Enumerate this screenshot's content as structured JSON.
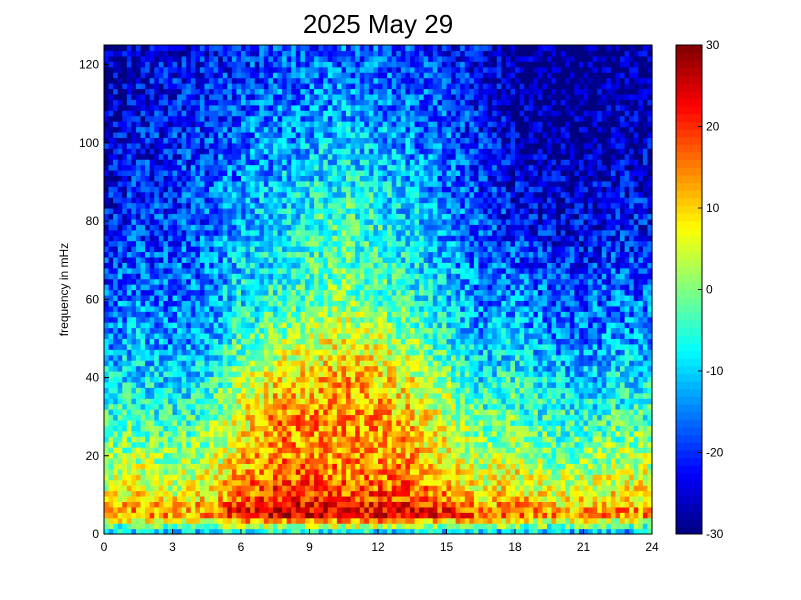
{
  "chart_data": {
    "type": "heatmap",
    "title": "2025 May 29",
    "xlabel": "",
    "ylabel": "frequency in mHz",
    "xlim": [
      0,
      24
    ],
    "ylim": [
      0,
      125
    ],
    "x_ticks": [
      0,
      3,
      6,
      9,
      12,
      15,
      18,
      21,
      24
    ],
    "y_ticks": [
      0,
      20,
      40,
      60,
      80,
      100,
      120
    ],
    "colorbar": {
      "range": [
        -30,
        30
      ],
      "ticks": [
        -30,
        -20,
        -10,
        0,
        10,
        20,
        30
      ],
      "colormap": "jet"
    },
    "grid": false,
    "description_of_values": {
      "x_units": "hours",
      "y_units": "mHz",
      "z_units": "dB"
    },
    "time_hours": [
      0,
      1.5,
      3,
      4.5,
      6,
      7.5,
      9,
      10.5,
      12,
      13.5,
      15,
      16.5,
      18,
      19.5,
      21,
      22.5,
      24
    ],
    "freq_mhz": [
      0,
      5,
      10,
      20,
      30,
      40,
      50,
      60,
      70,
      80,
      90,
      100,
      110,
      120,
      125
    ],
    "power_db": [
      [
        -14,
        -14,
        -15,
        -14,
        -12,
        -12,
        -12,
        -12,
        -12,
        -13,
        -13,
        -14,
        -14,
        -15,
        -15,
        -15,
        -15
      ],
      [
        12,
        16,
        14,
        16,
        24,
        26,
        26,
        24,
        24,
        24,
        22,
        16,
        18,
        14,
        14,
        15,
        15
      ],
      [
        6,
        8,
        6,
        8,
        16,
        20,
        20,
        18,
        18,
        18,
        14,
        8,
        10,
        6,
        6,
        8,
        8
      ],
      [
        0,
        2,
        0,
        2,
        10,
        14,
        14,
        13,
        13,
        12,
        8,
        2,
        4,
        0,
        0,
        2,
        2
      ],
      [
        -5,
        -4,
        -6,
        -3,
        6,
        14,
        14,
        14,
        13,
        10,
        4,
        -3,
        -2,
        -6,
        -6,
        -4,
        -4
      ],
      [
        -10,
        -9,
        -11,
        -8,
        2,
        8,
        10,
        12,
        10,
        6,
        0,
        -8,
        -6,
        -10,
        -11,
        -9,
        -9
      ],
      [
        -14,
        -12,
        -14,
        -12,
        -4,
        0,
        4,
        6,
        4,
        0,
        -6,
        -12,
        -10,
        -14,
        -15,
        -13,
        -13
      ],
      [
        -17,
        -15,
        -16,
        -14,
        -8,
        -6,
        -2,
        0,
        -2,
        -6,
        -10,
        -15,
        -14,
        -17,
        -18,
        -16,
        -16
      ],
      [
        -20,
        -18,
        -18,
        -16,
        -10,
        -8,
        -4,
        -2,
        -4,
        -8,
        -12,
        -17,
        -18,
        -20,
        -21,
        -19,
        -19
      ],
      [
        -22,
        -20,
        -19,
        -17,
        -12,
        -10,
        -6,
        -3,
        -6,
        -10,
        -14,
        -18,
        -22,
        -24,
        -24,
        -22,
        -22
      ],
      [
        -24,
        -21,
        -20,
        -18,
        -14,
        -12,
        -9,
        -7,
        -9,
        -12,
        -16,
        -20,
        -24,
        -26,
        -26,
        -24,
        -24
      ],
      [
        -26,
        -22,
        -21,
        -19,
        -16,
        -14,
        -12,
        -10,
        -12,
        -14,
        -17,
        -21,
        -26,
        -28,
        -28,
        -26,
        -26
      ],
      [
        -27,
        -23,
        -22,
        -20,
        -18,
        -16,
        -15,
        -13,
        -15,
        -16,
        -18,
        -22,
        -27,
        -29,
        -29,
        -27,
        -27
      ],
      [
        -28,
        -24,
        -23,
        -22,
        -20,
        -18,
        -17,
        -16,
        -17,
        -18,
        -20,
        -23,
        -28,
        -30,
        -30,
        -28,
        -28
      ],
      [
        -28,
        -25,
        -24,
        -23,
        -21,
        -19,
        -18,
        -17,
        -18,
        -19,
        -21,
        -24,
        -28,
        -30,
        -30,
        -28,
        -28
      ]
    ]
  }
}
